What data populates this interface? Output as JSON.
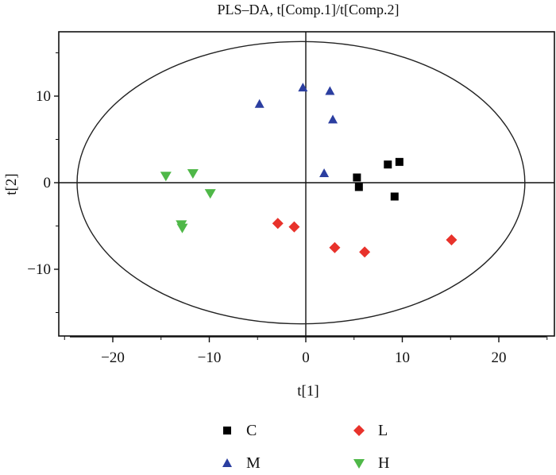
{
  "chart_data": {
    "type": "scatter",
    "title": "PLS–DA, t[Comp.1]/t[Comp.2]",
    "xlabel": "t[1]",
    "ylabel": "t[2]",
    "xlim": [
      -25,
      25
    ],
    "ylim": [
      -17,
      16.5
    ],
    "xticks": [
      -20,
      -10,
      0,
      10,
      20
    ],
    "xtick_labels": [
      "−20",
      "−10",
      "0",
      "10",
      "20"
    ],
    "yticks": [
      10,
      0,
      -10
    ],
    "ytick_labels": [
      "10",
      "0",
      "−10"
    ],
    "ellipse": {
      "cx": -0.5,
      "cy": 0,
      "rx": 23.2,
      "ry": 16.3
    },
    "legend_position": "bottom",
    "series": [
      {
        "name": "C",
        "marker": "square",
        "color": "#000000",
        "points": [
          [
            5.3,
            0.6
          ],
          [
            5.5,
            -0.5
          ],
          [
            8.5,
            2.1
          ],
          [
            9.7,
            2.4
          ],
          [
            9.2,
            -1.6
          ]
        ]
      },
      {
        "name": "L",
        "marker": "diamond",
        "color": "#e8322b",
        "points": [
          [
            -2.9,
            -4.7
          ],
          [
            -1.2,
            -5.1
          ],
          [
            3.0,
            -7.5
          ],
          [
            6.1,
            -8.0
          ],
          [
            15.1,
            -6.6
          ]
        ]
      },
      {
        "name": "M",
        "marker": "triangle-up",
        "color": "#2b3ea0",
        "points": [
          [
            -4.8,
            9.1
          ],
          [
            -0.3,
            11.0
          ],
          [
            2.5,
            10.6
          ],
          [
            2.8,
            7.3
          ],
          [
            1.9,
            1.1
          ]
        ]
      },
      {
        "name": "H",
        "marker": "triangle-down",
        "color": "#4fb848",
        "points": [
          [
            -14.5,
            0.8
          ],
          [
            -11.7,
            1.1
          ],
          [
            -9.9,
            -1.2
          ],
          [
            -12.9,
            -4.8
          ],
          [
            -12.8,
            -5.2
          ]
        ]
      }
    ]
  }
}
